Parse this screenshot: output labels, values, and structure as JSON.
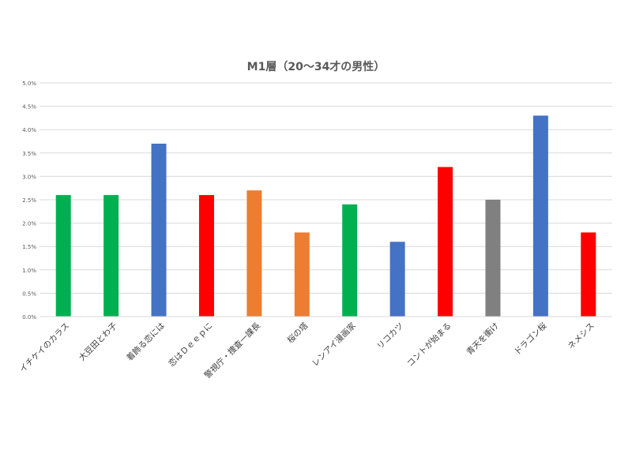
{
  "chart_data": {
    "type": "bar",
    "title": "M1層（20〜34才の男性）",
    "xlabel": "",
    "ylabel": "",
    "ylim": [
      0,
      5.0
    ],
    "yticks": [
      0,
      0.5,
      1.0,
      1.5,
      2.0,
      2.5,
      3.0,
      3.5,
      4.0,
      4.5,
      5.0
    ],
    "ytick_labels": [
      "0.0%",
      "0.5%",
      "1.0%",
      "1.5%",
      "2.0%",
      "2.5%",
      "3.0%",
      "3.5%",
      "4.0%",
      "4.5%",
      "5.0%"
    ],
    "grid": true,
    "legend": "none",
    "categories": [
      "イチケイのカラス",
      "大豆田とわ子",
      "着飾る恋には",
      "恋はＤｅｅｐに",
      "警視庁・捜査一課長",
      "桜の塔",
      "レンアイ漫画家",
      "リコカツ",
      "コントが始まる",
      "青天を衝け",
      "ドラゴン桜",
      "ネメシス"
    ],
    "values": [
      2.6,
      2.6,
      3.7,
      2.6,
      2.7,
      1.8,
      2.4,
      1.6,
      3.2,
      2.5,
      4.3,
      1.8
    ],
    "colors": [
      "#00b050",
      "#00b050",
      "#4472c4",
      "#ff0000",
      "#ed7d31",
      "#ed7d31",
      "#00b050",
      "#4472c4",
      "#ff0000",
      "#808080",
      "#4472c4",
      "#ff0000"
    ]
  }
}
